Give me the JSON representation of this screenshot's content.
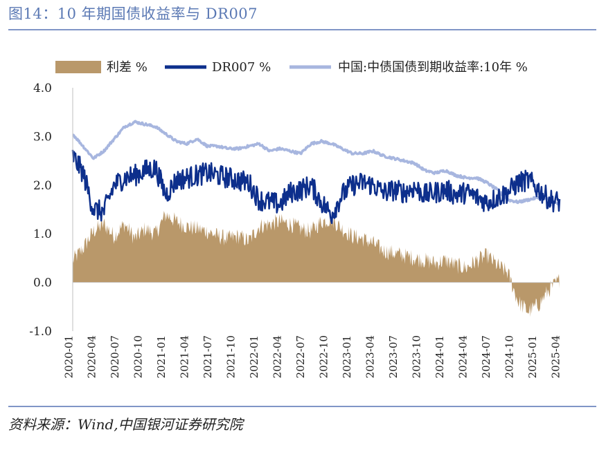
{
  "title": "图14：10 年期国债收益率与 DR007",
  "source": "资料来源：Wind,中国银河证券研究院",
  "colors": {
    "spread": "#b9986a",
    "dr007": "#0d2f8c",
    "bond10y": "#a7b6df",
    "accent": "#5b79b4"
  },
  "chart_data": {
    "type": "line",
    "title": "",
    "xlabel": "",
    "ylabel": "",
    "ylim": [
      -1.0,
      4.0
    ],
    "yticks": [
      "4.0",
      "3.0",
      "2.0",
      "1.0",
      "0.0",
      "-1.0"
    ],
    "ytick_values": [
      4.0,
      3.0,
      2.0,
      1.0,
      0.0,
      -1.0
    ],
    "xticks": [
      "2020-01",
      "2020-04",
      "2020-07",
      "2020-10",
      "2021-01",
      "2021-04",
      "2021-07",
      "2021-10",
      "2022-01",
      "2022-04",
      "2022-07",
      "2022-10",
      "2023-01",
      "2023-04",
      "2023-07",
      "2023-10",
      "2024-01",
      "2024-04",
      "2024-07",
      "2024-10",
      "2025-01",
      "2025-04"
    ],
    "legend_position": "top",
    "series": [
      {
        "name": "利差 %",
        "type": "area",
        "color": "#b9986a",
        "values": [
          0.45,
          0.7,
          1.05,
          1.2,
          0.95,
          1.2,
          0.9,
          1.1,
          1.0,
          1.4,
          1.25,
          1.15,
          1.1,
          1.05,
          0.95,
          0.9,
          0.95,
          0.85,
          1.15,
          1.2,
          1.25,
          1.2,
          1.1,
          1.05,
          1.25,
          1.3,
          1.1,
          0.95,
          0.9,
          0.8,
          0.65,
          0.6,
          0.55,
          0.5,
          0.45,
          0.4,
          0.45,
          0.35,
          0.3,
          0.45,
          0.55,
          0.35,
          0.2,
          -0.4,
          -0.6,
          -0.45,
          -0.15,
          0.05
        ]
      },
      {
        "name": "DR007 %",
        "type": "line",
        "color": "#0d2f8c",
        "values": [
          2.6,
          2.25,
          1.5,
          1.45,
          2.0,
          2.15,
          2.2,
          2.3,
          2.35,
          1.8,
          2.1,
          2.15,
          2.2,
          2.25,
          2.2,
          2.15,
          2.1,
          2.05,
          1.7,
          1.65,
          1.6,
          1.85,
          1.9,
          2.0,
          1.65,
          1.4,
          1.8,
          2.0,
          2.05,
          2.0,
          1.85,
          1.9,
          1.85,
          1.95,
          1.8,
          1.85,
          1.9,
          1.8,
          1.85,
          1.75,
          1.65,
          1.75,
          1.85,
          2.05,
          2.1,
          1.9,
          1.7,
          1.65
        ]
      },
      {
        "name": "中国:中债国债到期收益率:10年 %",
        "type": "line",
        "color": "#a7b6df",
        "values": [
          3.05,
          2.8,
          2.55,
          2.7,
          2.95,
          3.2,
          3.3,
          3.25,
          3.2,
          3.05,
          2.9,
          2.85,
          2.95,
          2.8,
          2.8,
          2.75,
          2.75,
          2.8,
          2.85,
          2.7,
          2.75,
          2.7,
          2.65,
          2.85,
          2.9,
          2.85,
          2.75,
          2.65,
          2.65,
          2.7,
          2.6,
          2.55,
          2.5,
          2.45,
          2.3,
          2.25,
          2.3,
          2.2,
          2.15,
          2.15,
          2.05,
          1.9,
          1.7,
          1.65,
          1.7,
          1.75,
          1.7,
          1.6
        ]
      }
    ]
  }
}
